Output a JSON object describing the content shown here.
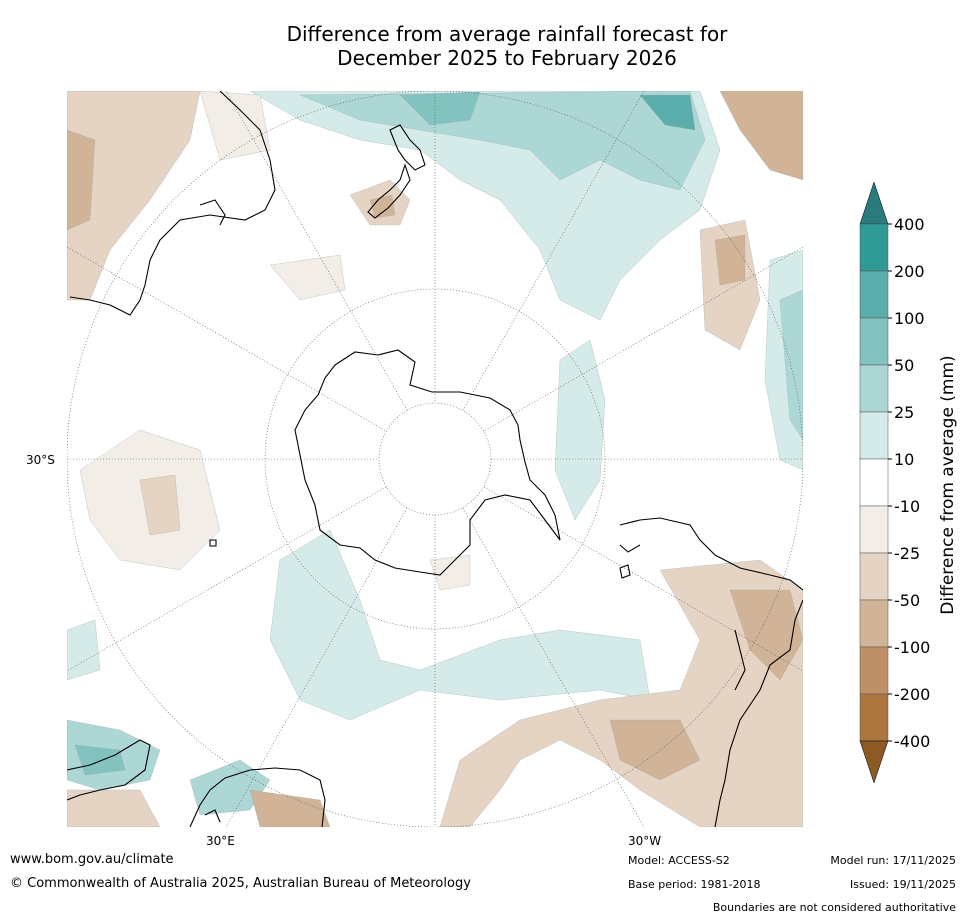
{
  "title": {
    "line1": "Difference from average rainfall forecast for",
    "line2": "December 2025 to February 2026"
  },
  "map": {
    "lat_label": "30°S",
    "lon_label_left": "30°E",
    "lon_label_right": "30°W"
  },
  "colorbar": {
    "label": "Difference from average (mm)",
    "ticks": [
      "400",
      "200",
      "100",
      "50",
      "25",
      "10",
      "-10",
      "-25",
      "-50",
      "-100",
      "-200",
      "-400"
    ],
    "colors": {
      "over": "#2a7b7b",
      "c400_200": "#2f9a96",
      "c200_100": "#5aadaa",
      "c100_50": "#82c2bf",
      "c50_25": "#acd7d5",
      "c25_10": "#d5ebe9",
      "c10_m10": "#ffffff",
      "cm10_m25": "#f2ede6",
      "cm25_m50": "#e5d4c4",
      "cm50_m100": "#d1b398",
      "cm100_m200": "#bd9068",
      "cm200_m400": "#ac763f",
      "under": "#8c5a25"
    }
  },
  "footer": {
    "website": "www.bom.gov.au/climate",
    "copyright": "© Commonwealth of Australia 2025, Australian Bureau of Meteorology",
    "model": "Model: ACCESS-S2",
    "base_period": "Base period: 1981-2018",
    "model_run": "Model run: 17/11/2025",
    "issued": "Issued: 19/11/2025",
    "disclaimer": "Boundaries are not considered authoritative"
  }
}
